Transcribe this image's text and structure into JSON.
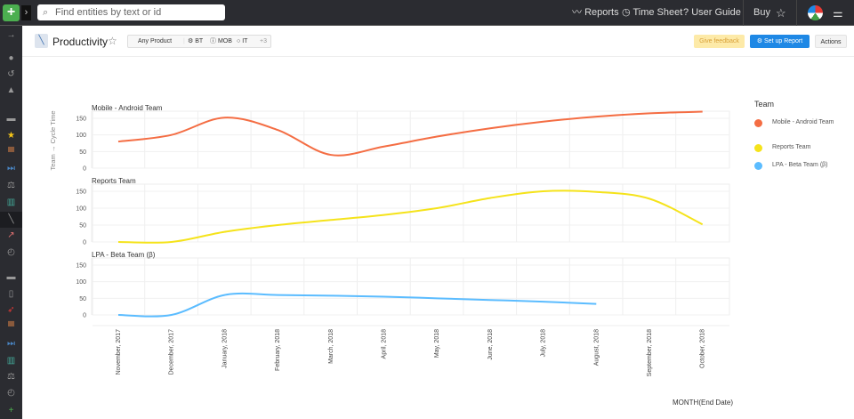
{
  "topbar": {
    "search_placeholder": "Find entities by text or id",
    "nav": [
      "Reports",
      "Time Sheet",
      "User Guide"
    ],
    "buy": "Buy"
  },
  "header": {
    "title": "Productivity",
    "filters": {
      "product": "Any Product",
      "tags": [
        "BT",
        "MOB",
        "IT"
      ],
      "more": "+3"
    },
    "feedback": "Give feedback",
    "setup": "Set up Report",
    "actions": "Actions"
  },
  "legend": {
    "title": "Team",
    "items": [
      {
        "label": "Mobile - Android Team",
        "color": "#f46d43"
      },
      {
        "label": "Reports Team",
        "color": "#f5e31b"
      },
      {
        "label": "LPA - Beta Team (β)",
        "color": "#5bbcff"
      }
    ]
  },
  "sidebar_icons": [
    "arrow-right-icon",
    "user-icon",
    "history-icon",
    "bell-icon",
    "folder-icon",
    "star-icon",
    "briefcase-icon",
    "forward-icon",
    "scales-icon",
    "bar-chart-icon",
    "line-chart-icon",
    "trend-chart-icon",
    "gauge-icon",
    "folder-icon",
    "tablet-icon",
    "rocket-icon",
    "briefcase-icon",
    "forward-icon",
    "bar-chart-icon",
    "scales-icon",
    "gauge-icon",
    "plus-icon"
  ],
  "chart_data": {
    "type": "line",
    "ylabel": "Team → Cycle Time",
    "xlabel": "MONTH(End Date)",
    "categories": [
      "November, 2017",
      "December, 2017",
      "January, 2018",
      "February, 2018",
      "March, 2018",
      "April, 2018",
      "May, 2018",
      "June, 2018",
      "July, 2018",
      "August, 2018",
      "September, 2018",
      "October, 2018"
    ],
    "yticks": [
      0,
      50,
      100,
      150
    ],
    "ylim": [
      0,
      170
    ],
    "grid": true,
    "legend": "right",
    "series": [
      {
        "name": "Mobile - Android Team",
        "color": "#f46d43",
        "values": [
          80,
          100,
          152,
          115,
          40,
          65,
          95,
          120,
          140,
          155,
          165,
          170
        ]
      },
      {
        "name": "Reports Team",
        "color": "#f5e31b",
        "values": [
          0,
          0,
          30,
          50,
          65,
          80,
          100,
          130,
          150,
          148,
          128,
          52
        ]
      },
      {
        "name": "LPA - Beta Team (β)",
        "color": "#5bbcff",
        "values": [
          0,
          0,
          60,
          60,
          58,
          55,
          50,
          45,
          40,
          33,
          null,
          null
        ]
      }
    ]
  }
}
